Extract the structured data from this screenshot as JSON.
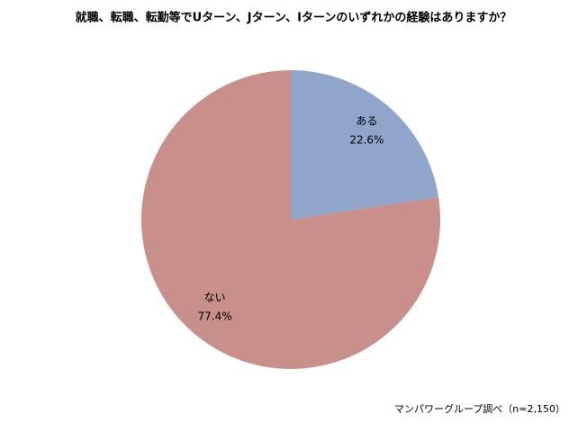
{
  "chart_data": {
    "type": "pie",
    "title": "就職、転職、転勤等でUターン、Jターン、Iターンのいずれかの経験はありますか？",
    "categories": [
      "ある",
      "ない"
    ],
    "values": [
      22.6,
      77.4
    ],
    "value_labels": [
      "22.6%",
      "77.4%"
    ],
    "colors": [
      "#8fa5c9",
      "#c98f8a"
    ],
    "source": "マンパワーグループ調べ（n=2,150）"
  }
}
